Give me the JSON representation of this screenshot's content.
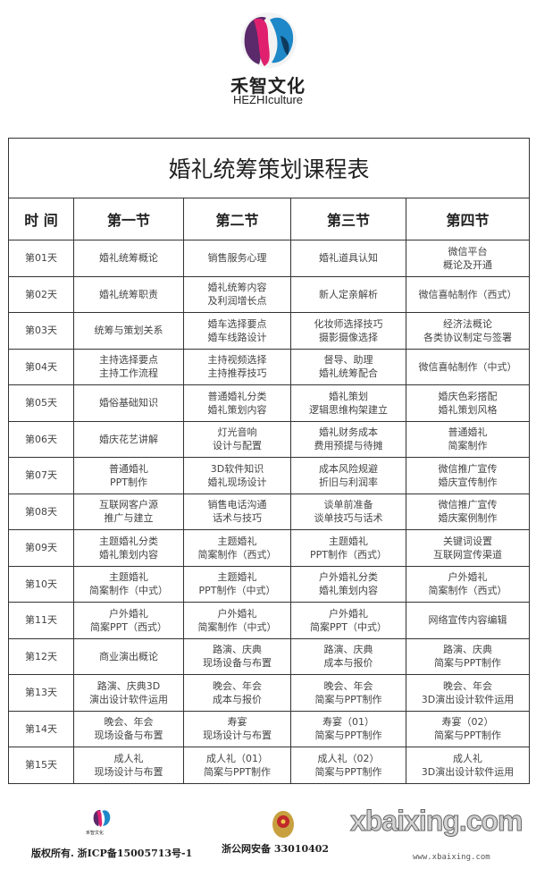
{
  "brand": {
    "name_cn": "禾智文化",
    "name_en": "HEZHIculture",
    "colors": [
      "#e0206e",
      "#1e88c8",
      "#5a2a6a"
    ]
  },
  "table": {
    "title": "婚礼统筹策划课程表",
    "headers": [
      "时 间",
      "第一节",
      "第二节",
      "第三节",
      "第四节"
    ],
    "rows": [
      [
        "第01天",
        "婚礼统筹概论",
        "销售服务心理",
        "婚礼道具认知",
        "微信平台\n概论及开通"
      ],
      [
        "第02天",
        "婚礼统筹职责",
        "婚礼统筹内容\n及利润增长点",
        "新人定亲解析",
        "微信喜帖制作（西式）"
      ],
      [
        "第03天",
        "统筹与策划关系",
        "婚车选择要点\n婚车线路设计",
        "化妆师选择技巧\n摄影摄像选择",
        "经济法概论\n各类协议制定与签署"
      ],
      [
        "第04天",
        "主持选择要点\n主持工作流程",
        "主持视频选择\n主持推荐技巧",
        "督导、助理\n婚礼统筹配合",
        "微信喜帖制作（中式）"
      ],
      [
        "第05天",
        "婚俗基础知识",
        "普通婚礼分类\n婚礼策划内容",
        "婚礼策划\n逻辑思维构架建立",
        "婚庆色彩搭配\n婚礼策划风格"
      ],
      [
        "第06天",
        "婚庆花艺讲解",
        "灯光音响\n设计与配置",
        "婚礼财务成本\n费用预提与待摊",
        "普通婚礼\n简案制作"
      ],
      [
        "第07天",
        "普通婚礼\nPPT制作",
        "3D软件知识\n婚礼现场设计",
        "成本风险规避\n折旧与利润率",
        "微信推广宣传\n婚庆宣传制作"
      ],
      [
        "第08天",
        "互联网客户源\n推广与建立",
        "销售电话沟通\n话术与技巧",
        "谈单前准备\n谈单技巧与话术",
        "微信推广宣传\n婚庆案例制作"
      ],
      [
        "第09天",
        "主题婚礼分类\n婚礼策划内容",
        "主题婚礼\n简案制作（西式）",
        "主题婚礼\nPPT制作（西式）",
        "关键词设置\n互联网宣传渠道"
      ],
      [
        "第10天",
        "主题婚礼\n简案制作（中式）",
        "主题婚礼\nPPT制作（中式）",
        "户外婚礼分类\n婚礼策划内容",
        "户外婚礼\n简案制作（西式）"
      ],
      [
        "第11天",
        "户外婚礼\n简案PPT（西式）",
        "户外婚礼\n简案制作（中式）",
        "户外婚礼\n简案PPT（中式）",
        "网络宣传内容编辑"
      ],
      [
        "第12天",
        "商业演出概论",
        "路演、庆典\n现场设备与布置",
        "路演、庆典\n成本与报价",
        "路演、庆典\n简案与PPT制作"
      ],
      [
        "第13天",
        "路演、庆典3D\n演出设计软件运用",
        "晚会、年会\n成本与报价",
        "晚会、年会\n简案与PPT制作",
        "晚会、年会\n3D演出设计软件运用"
      ],
      [
        "第14天",
        "晚会、年会\n现场设备与布置",
        "寿宴\n现场设计与布置",
        "寿宴（01）\n简案与PPT制作",
        "寿宴（02）\n简案与PPT制作"
      ],
      [
        "第15天",
        "成人礼\n现场设计与布置",
        "成人礼（01）\n简案与PPT制作",
        "成人礼（02）\n简案与PPT制作",
        "成人礼\n3D演出设计软件运用"
      ]
    ]
  },
  "footer": {
    "small_logo_cn": "禾智文化",
    "copyright": "版权所有. 浙ICP备15005713号-1",
    "police_record": "浙公网安备 33010402",
    "watermark": "xbaixing.com",
    "watermark_url": "www.xbaixing.com"
  }
}
